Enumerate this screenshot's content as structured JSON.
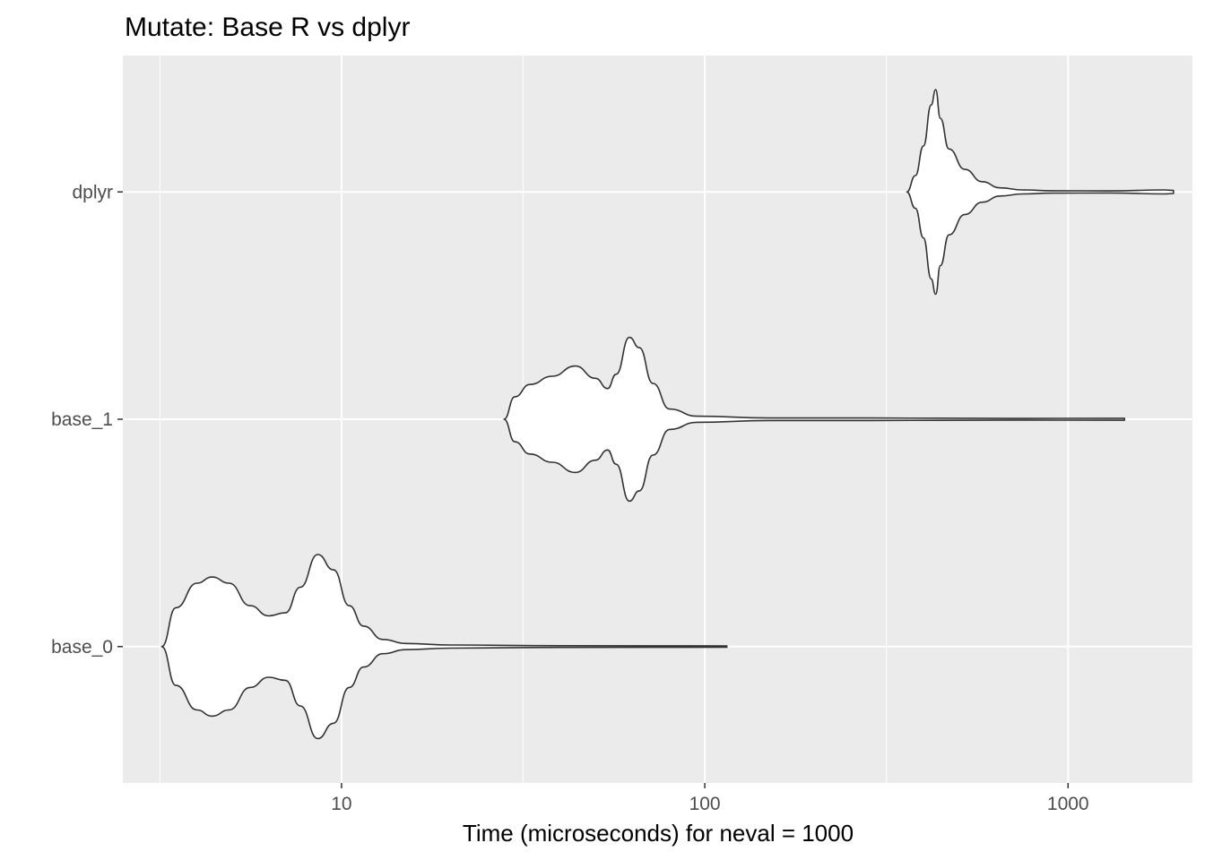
{
  "chart_data": {
    "type": "violin",
    "title": "Mutate: Base R vs dplyr",
    "xlabel": "Time (microseconds) for neval = 1000",
    "ylabel": "",
    "x_scale": "log10",
    "xlim": [
      2.5,
      2200
    ],
    "x_ticks": [
      10,
      100,
      1000
    ],
    "x_tick_labels": [
      "10",
      "100",
      "1000"
    ],
    "x_minor_ticks": [
      3.162,
      31.62,
      316.2
    ],
    "categories": [
      "base_0",
      "base_1",
      "dplyr"
    ],
    "grid": true,
    "legend": "none",
    "colors": {
      "panel_background": "#ebebeb",
      "grid": "#ffffff",
      "violin_fill": "#ffffff",
      "violin_outline": "#333333",
      "tick_label": "#4d4d4d",
      "title": "#000000"
    },
    "series": [
      {
        "category": "base_0",
        "min": 3.2,
        "max": 115,
        "density_profile": [
          [
            3.2,
            0.05
          ],
          [
            3.5,
            0.38
          ],
          [
            4.0,
            0.62
          ],
          [
            4.4,
            0.68
          ],
          [
            4.9,
            0.62
          ],
          [
            5.6,
            0.4
          ],
          [
            6.3,
            0.3
          ],
          [
            7.0,
            0.33
          ],
          [
            7.7,
            0.58
          ],
          [
            8.6,
            0.9
          ],
          [
            9.5,
            0.75
          ],
          [
            10.5,
            0.4
          ],
          [
            11.5,
            0.2
          ],
          [
            13.0,
            0.07
          ],
          [
            15.0,
            0.03
          ],
          [
            20.0,
            0.015
          ],
          [
            40.0,
            0.008
          ],
          [
            115.0,
            0.005
          ]
        ]
      },
      {
        "category": "base_1",
        "min": 28,
        "max": 1430,
        "density_profile": [
          [
            28,
            0.03
          ],
          [
            30,
            0.22
          ],
          [
            33,
            0.34
          ],
          [
            38,
            0.42
          ],
          [
            44,
            0.52
          ],
          [
            50,
            0.4
          ],
          [
            54,
            0.3
          ],
          [
            57,
            0.44
          ],
          [
            62,
            0.8
          ],
          [
            66,
            0.7
          ],
          [
            72,
            0.35
          ],
          [
            80,
            0.1
          ],
          [
            95,
            0.03
          ],
          [
            150,
            0.012
          ],
          [
            280,
            0.012
          ],
          [
            700,
            0.008
          ],
          [
            1300,
            0.01
          ],
          [
            1430,
            0.01
          ]
        ]
      },
      {
        "category": "dplyr",
        "min": 360,
        "max": 1950,
        "density_profile": [
          [
            360,
            0.03
          ],
          [
            380,
            0.16
          ],
          [
            400,
            0.45
          ],
          [
            420,
            0.85
          ],
          [
            432,
            1.0
          ],
          [
            445,
            0.72
          ],
          [
            470,
            0.42
          ],
          [
            520,
            0.22
          ],
          [
            580,
            0.1
          ],
          [
            650,
            0.04
          ],
          [
            750,
            0.02
          ],
          [
            900,
            0.012
          ],
          [
            1300,
            0.01
          ],
          [
            1850,
            0.02
          ],
          [
            1950,
            0.015
          ]
        ]
      }
    ]
  }
}
